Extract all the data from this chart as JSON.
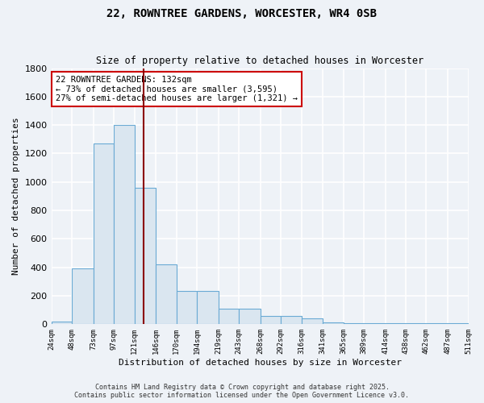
{
  "title": "22, ROWNTREE GARDENS, WORCESTER, WR4 0SB",
  "subtitle": "Size of property relative to detached houses in Worcester",
  "xlabel": "Distribution of detached houses by size in Worcester",
  "ylabel": "Number of detached properties",
  "bin_edges": [
    24,
    48,
    73,
    97,
    121,
    146,
    170,
    194,
    219,
    243,
    268,
    292,
    316,
    341,
    365,
    389,
    414,
    438,
    462,
    487,
    511
  ],
  "bar_heights": [
    20,
    390,
    1270,
    1400,
    960,
    420,
    235,
    235,
    110,
    110,
    60,
    60,
    40,
    15,
    10,
    8,
    5,
    5,
    5,
    5
  ],
  "bar_color": "#dae6f0",
  "bar_edgecolor": "#6aaad4",
  "property_size": 132,
  "red_line_color": "#8b0000",
  "annotation_text": "22 ROWNTREE GARDENS: 132sqm\n← 73% of detached houses are smaller (3,595)\n27% of semi-detached houses are larger (1,321) →",
  "annotation_box_edgecolor": "#cc0000",
  "annotation_box_facecolor": "#ffffff",
  "ylim": [
    0,
    1800
  ],
  "background_color": "#eef2f7",
  "grid_color": "#ffffff",
  "tick_labels": [
    "24sqm",
    "48sqm",
    "73sqm",
    "97sqm",
    "121sqm",
    "146sqm",
    "170sqm",
    "194sqm",
    "219sqm",
    "243sqm",
    "268sqm",
    "292sqm",
    "316sqm",
    "341sqm",
    "365sqm",
    "389sqm",
    "414sqm",
    "438sqm",
    "462sqm",
    "487sqm",
    "511sqm"
  ],
  "footer_line1": "Contains HM Land Registry data © Crown copyright and database right 2025.",
  "footer_line2": "Contains public sector information licensed under the Open Government Licence v3.0."
}
